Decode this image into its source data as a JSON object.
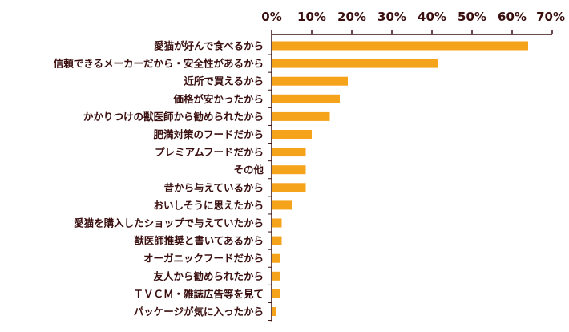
{
  "chart_data": {
    "type": "bar",
    "orientation": "horizontal",
    "title": "",
    "xlabel": "",
    "ylabel": "",
    "xlim": [
      0,
      70
    ],
    "tick_labels": [
      "0%",
      "10%",
      "20%",
      "30%",
      "40%",
      "50%",
      "60%",
      "70%"
    ],
    "tick_values": [
      0,
      10,
      20,
      30,
      40,
      50,
      60,
      70
    ],
    "grid": false,
    "axis_position": "top",
    "bar_color": "#F5A31A",
    "axis_color": "#3a0f0f",
    "categories": [
      "愛猫が好んで食べるから",
      "信頼できるメーカーだから・安全性があるから",
      "近所で買えるから",
      "価格が安かったから",
      "かかりつけの獣医師から勧められたから",
      "肥満対策のフードだから",
      "プレミアムフードだから",
      "その他",
      "昔から与えているから",
      "おいしそうに思えたから",
      "愛猫を購入したショップで与えていたから",
      "獣医師推奨と書いてあるから",
      "オーガニックフードだから",
      "友人から勧められたから",
      "ＴＶＣＭ・雑誌広告等を見て",
      "パッケージが気に入ったから"
    ],
    "values": [
      64,
      41.5,
      19,
      17,
      14.5,
      10,
      8.5,
      8.5,
      8.5,
      5,
      2.5,
      2.5,
      2,
      2,
      2,
      1
    ]
  }
}
